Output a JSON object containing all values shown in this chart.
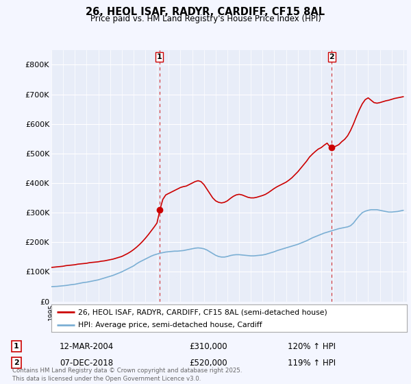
{
  "title1": "26, HEOL ISAF, RADYR, CARDIFF, CF15 8AL",
  "title2": "Price paid vs. HM Land Registry's House Price Index (HPI)",
  "legend_line1": "26, HEOL ISAF, RADYR, CARDIFF, CF15 8AL (semi-detached house)",
  "legend_line2": "HPI: Average price, semi-detached house, Cardiff",
  "annotation1_label": "1",
  "annotation1_date": "12-MAR-2004",
  "annotation1_price": "£310,000",
  "annotation1_hpi": "120% ↑ HPI",
  "annotation2_label": "2",
  "annotation2_date": "07-DEC-2018",
  "annotation2_price": "£520,000",
  "annotation2_hpi": "119% ↑ HPI",
  "footer": "Contains HM Land Registry data © Crown copyright and database right 2025.\nThis data is licensed under the Open Government Licence v3.0.",
  "red_color": "#cc0000",
  "blue_color": "#7bafd4",
  "background_color": "#f4f6ff",
  "plot_bg_color": "#e8edf8",
  "ylim": [
    0,
    850000
  ],
  "yticks": [
    0,
    100000,
    200000,
    300000,
    400000,
    500000,
    600000,
    700000,
    800000
  ],
  "ytick_labels": [
    "£0",
    "£100K",
    "£200K",
    "£300K",
    "£400K",
    "£500K",
    "£600K",
    "£700K",
    "£800K"
  ],
  "hpi_x": [
    1995.0,
    1995.25,
    1995.5,
    1995.75,
    1996.0,
    1996.25,
    1996.5,
    1996.75,
    1997.0,
    1997.25,
    1997.5,
    1997.75,
    1998.0,
    1998.25,
    1998.5,
    1998.75,
    1999.0,
    1999.25,
    1999.5,
    1999.75,
    2000.0,
    2000.25,
    2000.5,
    2000.75,
    2001.0,
    2001.25,
    2001.5,
    2001.75,
    2002.0,
    2002.25,
    2002.5,
    2002.75,
    2003.0,
    2003.25,
    2003.5,
    2003.75,
    2004.0,
    2004.25,
    2004.5,
    2004.75,
    2005.0,
    2005.25,
    2005.5,
    2005.75,
    2006.0,
    2006.25,
    2006.5,
    2006.75,
    2007.0,
    2007.25,
    2007.5,
    2007.75,
    2008.0,
    2008.25,
    2008.5,
    2008.75,
    2009.0,
    2009.25,
    2009.5,
    2009.75,
    2010.0,
    2010.25,
    2010.5,
    2010.75,
    2011.0,
    2011.25,
    2011.5,
    2011.75,
    2012.0,
    2012.25,
    2012.5,
    2012.75,
    2013.0,
    2013.25,
    2013.5,
    2013.75,
    2014.0,
    2014.25,
    2014.5,
    2014.75,
    2015.0,
    2015.25,
    2015.5,
    2015.75,
    2016.0,
    2016.25,
    2016.5,
    2016.75,
    2017.0,
    2017.25,
    2017.5,
    2017.75,
    2018.0,
    2018.25,
    2018.5,
    2018.75,
    2019.0,
    2019.25,
    2019.5,
    2019.75,
    2020.0,
    2020.25,
    2020.5,
    2020.75,
    2021.0,
    2021.25,
    2021.5,
    2021.75,
    2022.0,
    2022.25,
    2022.5,
    2022.75,
    2023.0,
    2023.25,
    2023.5,
    2023.75,
    2024.0,
    2024.25,
    2024.5,
    2024.75,
    2025.0
  ],
  "hpi_y": [
    50000,
    50500,
    51000,
    52000,
    53000,
    54000,
    55500,
    57000,
    58000,
    60000,
    62000,
    64000,
    65000,
    67000,
    69000,
    71000,
    73000,
    76000,
    79000,
    82000,
    85000,
    88000,
    92000,
    96000,
    100000,
    105000,
    110000,
    115000,
    120000,
    127000,
    133000,
    138000,
    143000,
    148000,
    153000,
    157000,
    160000,
    163000,
    165000,
    167000,
    168000,
    169000,
    170000,
    170000,
    171000,
    172000,
    174000,
    176000,
    178000,
    180000,
    181000,
    180000,
    178000,
    174000,
    168000,
    162000,
    156000,
    152000,
    150000,
    150000,
    152000,
    155000,
    157000,
    158000,
    158000,
    157000,
    156000,
    155000,
    154000,
    154000,
    155000,
    156000,
    157000,
    159000,
    162000,
    165000,
    168000,
    172000,
    175000,
    178000,
    181000,
    184000,
    187000,
    190000,
    193000,
    197000,
    201000,
    205000,
    210000,
    215000,
    219000,
    223000,
    227000,
    231000,
    234000,
    237000,
    240000,
    243000,
    246000,
    248000,
    250000,
    252000,
    256000,
    265000,
    278000,
    290000,
    300000,
    305000,
    308000,
    310000,
    310000,
    310000,
    308000,
    306000,
    304000,
    302000,
    302000,
    303000,
    304000,
    306000,
    308000
  ],
  "red_x": [
    1995.0,
    1995.25,
    1995.5,
    1995.75,
    1996.0,
    1996.25,
    1996.5,
    1996.75,
    1997.0,
    1997.25,
    1997.5,
    1997.75,
    1998.0,
    1998.25,
    1998.5,
    1998.75,
    1999.0,
    1999.25,
    1999.5,
    1999.75,
    2000.0,
    2000.25,
    2000.5,
    2000.75,
    2001.0,
    2001.25,
    2001.5,
    2001.75,
    2002.0,
    2002.25,
    2002.5,
    2002.75,
    2003.0,
    2003.25,
    2003.5,
    2003.75,
    2004.0,
    2004.25,
    2004.5,
    2004.75,
    2005.0,
    2005.25,
    2005.5,
    2005.75,
    2006.0,
    2006.25,
    2006.5,
    2006.75,
    2007.0,
    2007.25,
    2007.5,
    2007.75,
    2008.0,
    2008.25,
    2008.5,
    2008.75,
    2009.0,
    2009.25,
    2009.5,
    2009.75,
    2010.0,
    2010.25,
    2010.5,
    2010.75,
    2011.0,
    2011.25,
    2011.5,
    2011.75,
    2012.0,
    2012.25,
    2012.5,
    2012.75,
    2013.0,
    2013.25,
    2013.5,
    2013.75,
    2014.0,
    2014.25,
    2014.5,
    2014.75,
    2015.0,
    2015.25,
    2015.5,
    2015.75,
    2016.0,
    2016.25,
    2016.5,
    2016.75,
    2017.0,
    2017.25,
    2017.5,
    2017.75,
    2018.0,
    2018.25,
    2018.5,
    2018.75,
    2019.0,
    2019.25,
    2019.5,
    2019.75,
    2020.0,
    2020.25,
    2020.5,
    2020.75,
    2021.0,
    2021.25,
    2021.5,
    2021.75,
    2022.0,
    2022.25,
    2022.5,
    2022.75,
    2023.0,
    2023.25,
    2023.5,
    2023.75,
    2024.0,
    2024.25,
    2024.5,
    2024.75,
    2025.0
  ],
  "red_y": [
    115000,
    116000,
    117000,
    118000,
    119000,
    121000,
    122000,
    123000,
    124000,
    126000,
    127000,
    128000,
    129000,
    131000,
    132000,
    133000,
    134000,
    136000,
    137000,
    139000,
    141000,
    143000,
    146000,
    149000,
    152000,
    157000,
    162000,
    168000,
    175000,
    183000,
    192000,
    202000,
    213000,
    225000,
    238000,
    251000,
    265000,
    310000,
    345000,
    360000,
    365000,
    370000,
    375000,
    380000,
    385000,
    388000,
    390000,
    395000,
    400000,
    405000,
    408000,
    405000,
    395000,
    380000,
    365000,
    350000,
    340000,
    335000,
    333000,
    335000,
    340000,
    348000,
    355000,
    360000,
    362000,
    360000,
    356000,
    352000,
    350000,
    350000,
    352000,
    355000,
    358000,
    362000,
    368000,
    375000,
    382000,
    388000,
    393000,
    398000,
    403000,
    410000,
    418000,
    428000,
    438000,
    450000,
    462000,
    474000,
    488000,
    498000,
    507000,
    515000,
    520000,
    528000,
    535000,
    522000,
    520000,
    525000,
    530000,
    540000,
    548000,
    560000,
    578000,
    600000,
    625000,
    648000,
    668000,
    682000,
    688000,
    680000,
    672000,
    670000,
    672000,
    675000,
    678000,
    680000,
    683000,
    686000,
    688000,
    690000,
    692000
  ],
  "marker1_x": 2004.2,
  "marker1_y": 310000,
  "marker2_x": 2018.9,
  "marker2_y": 520000,
  "vline1_x": 2004.2,
  "vline2_x": 2018.9,
  "xmin": 1995,
  "xmax": 2025.3
}
